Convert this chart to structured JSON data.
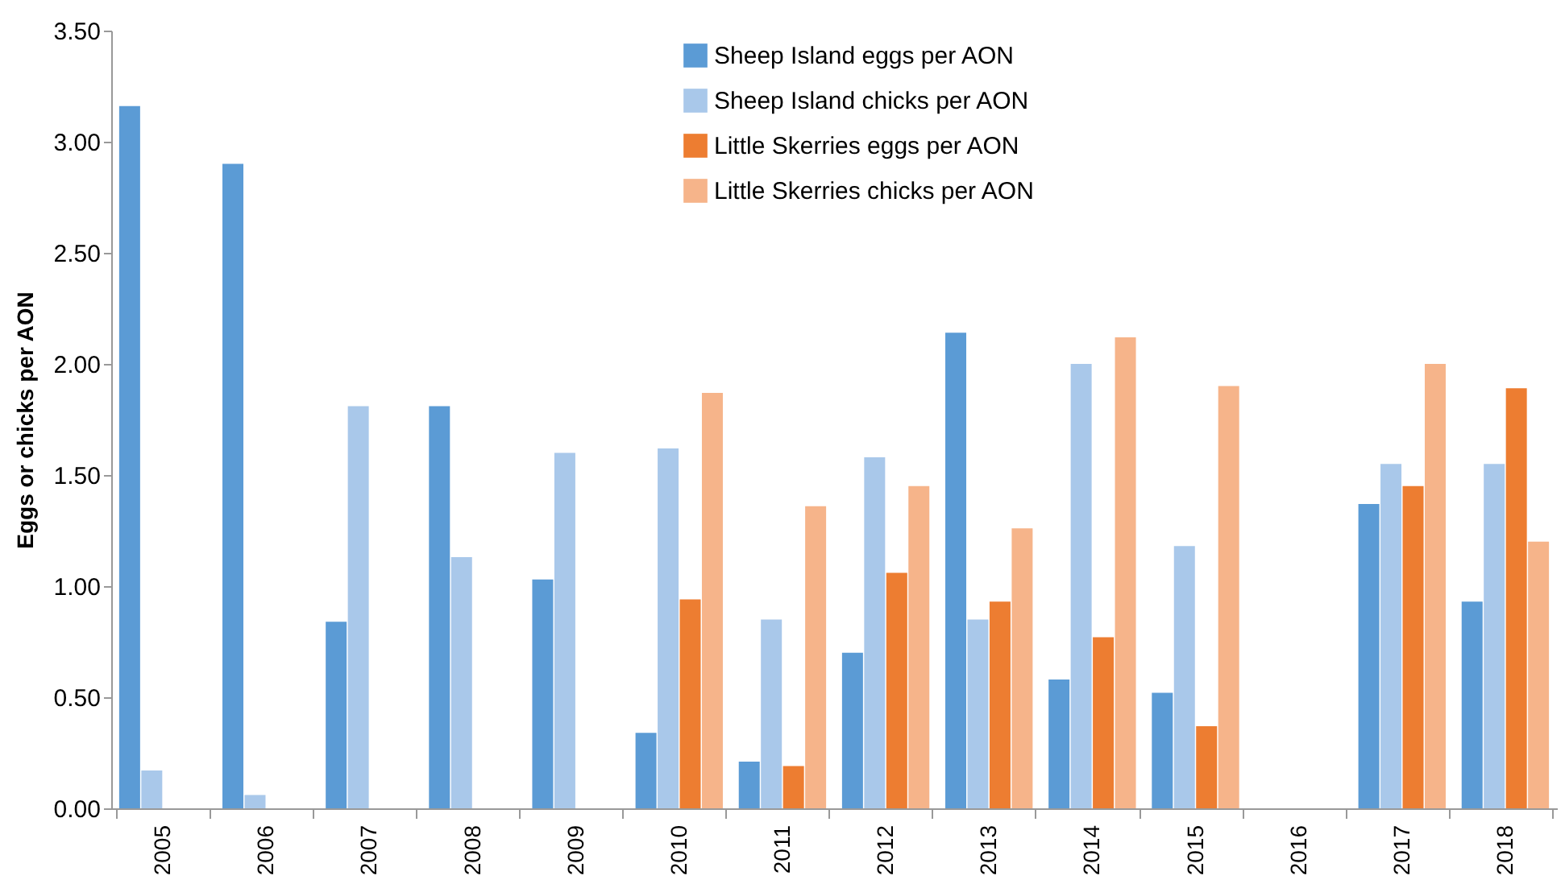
{
  "chart_data": {
    "type": "bar",
    "ylabel": "Eggs or chicks per AON",
    "categories": [
      "2005",
      "2006",
      "2007",
      "2008",
      "2009",
      "2010",
      "2011",
      "2012",
      "2013",
      "2014",
      "2015",
      "2016",
      "2017",
      "2018"
    ],
    "series": [
      {
        "name": "Sheep Island eggs per AON",
        "color": "#5b9bd5",
        "values": [
          3.16,
          2.9,
          0.84,
          1.81,
          1.03,
          0.34,
          0.21,
          0.7,
          2.14,
          0.58,
          0.52,
          null,
          1.37,
          0.93
        ]
      },
      {
        "name": "Sheep Island chicks per AON",
        "color": "#a9c8ea",
        "values": [
          0.17,
          0.06,
          1.81,
          1.13,
          1.6,
          1.62,
          0.85,
          1.58,
          0.85,
          2.0,
          1.18,
          null,
          1.55,
          1.55
        ]
      },
      {
        "name": "Little Skerries eggs per AON",
        "color": "#ed7d31",
        "values": [
          null,
          null,
          null,
          null,
          null,
          0.94,
          0.19,
          1.06,
          0.93,
          0.77,
          0.37,
          null,
          1.45,
          1.89
        ]
      },
      {
        "name": "Little Skerries chicks per AON",
        "color": "#f6b48a",
        "values": [
          null,
          null,
          null,
          null,
          null,
          1.87,
          1.36,
          1.45,
          1.26,
          2.12,
          1.9,
          null,
          2.0,
          1.2
        ]
      }
    ],
    "ylim": [
      0,
      3.5
    ],
    "yticks": [
      {
        "value": 0,
        "label": "0.00"
      },
      {
        "value": 0.5,
        "label": "0.50"
      },
      {
        "value": 1,
        "label": "1.00"
      },
      {
        "value": 1.5,
        "label": "1.50"
      },
      {
        "value": 2,
        "label": "2.00"
      },
      {
        "value": 2.5,
        "label": "2.50"
      },
      {
        "value": 3,
        "label": "3.00"
      },
      {
        "value": 3.5,
        "label": "3.50"
      }
    ],
    "grid": false,
    "legend": "top right"
  }
}
